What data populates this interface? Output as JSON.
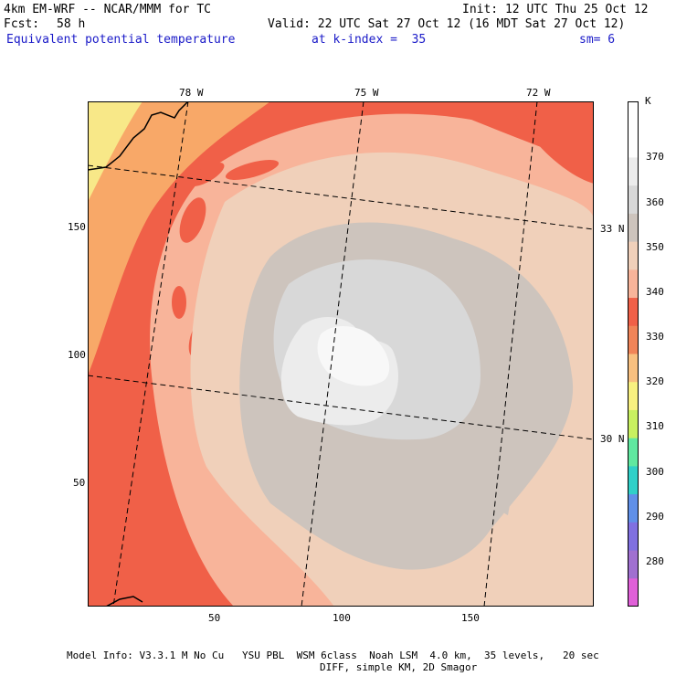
{
  "header": {
    "model": "4km EM-WRF -- NCAR/MMM for TC",
    "init": "Init: 12 UTC Thu 25 Oct 12",
    "fcst_label": "Fcst:",
    "fcst_value": "58 h",
    "valid": "Valid: 22 UTC Sat 27 Oct 12 (16 MDT Sat 27 Oct 12)",
    "field": "Equivalent potential temperature",
    "kindex": "at k-index =  35",
    "smooth": "sm= 6"
  },
  "axes": {
    "lon_labels": [
      "78 W",
      "75 W",
      "72 W"
    ],
    "lat_labels": [
      "33 N",
      "30 N"
    ],
    "y_ticks": [
      "150",
      "100",
      "50"
    ],
    "x_ticks": [
      "50",
      "100",
      "150"
    ]
  },
  "colorbar": {
    "unit": "K",
    "labels": [
      "370",
      "360",
      "350",
      "340",
      "330",
      "320",
      "310",
      "300",
      "290",
      "280"
    ],
    "colors": [
      "#ffffff",
      "#ffffff",
      "#ececec",
      "#d8d8d8",
      "#cdc4bd",
      "#f0d0ba",
      "#f8b49a",
      "#f06048",
      "#f08458",
      "#f8c080",
      "#f8f080",
      "#c8f060",
      "#60e8a0",
      "#30d0c8",
      "#6090e8",
      "#8070e0",
      "#a070d0",
      "#e060d8"
    ]
  },
  "footer": {
    "line1": "Model Info: V3.3.1 M No Cu   YSU PBL  WSM 6class  Noah LSM  4.0 km,  35 levels,   20 sec",
    "line2": "DIFF, simple KM, 2D Smagor"
  },
  "map_colors": {
    "outer_yellow": "#f8e888",
    "band_330": "#f8a868",
    "band_340": "#f06048",
    "band_350": "#f8b49a",
    "band_355": "#f0d0ba",
    "band_360": "#cdc4bd",
    "band_365": "#d8d8d8",
    "band_370": "#ececec",
    "core": "#f8f8f8"
  }
}
